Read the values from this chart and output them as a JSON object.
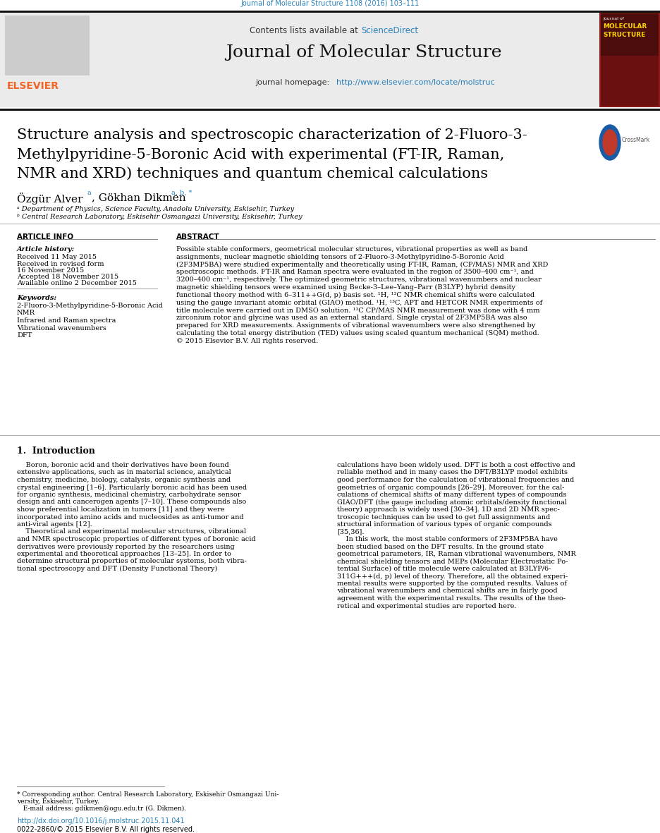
{
  "journal_ref": "Journal of Molecular Structure 1108 (2016) 103–111",
  "journal_name": "Journal of Molecular Structure",
  "homepage_url": "http://www.elsevier.com/locate/molstruc",
  "title_line1": "Structure analysis and spectroscopic characterization of 2-Fluoro-3-",
  "title_line2": "Methylpyridine-5-Boronic Acid with experimental (FT-IR, Raman,",
  "title_line3": "NMR and XRD) techniques and quantum chemical calculations",
  "author1": "Özgür Alver ",
  "author1_sup": "a",
  "author2": ", Gökhan Dikmen ",
  "author2_sup": "a, b, *",
  "affil_a": "ᵃ Department of Physics, Science Faculty, Anadolu University, Eskisehir, Turkey",
  "affil_b": "ᵇ Central Research Laboratory, Eskisehir Osmangazi University, Eskisehir, Turkey",
  "article_history_label": "Article history:",
  "received": "Received 11 May 2015",
  "revised_label": "Received in revised form",
  "revised_date": "16 November 2015",
  "accepted": "Accepted 18 November 2015",
  "available": "Available online 2 December 2015",
  "kw_label": "Keywords:",
  "kw1": "2-Fluoro-3-Methylpyridine-5-Boronic Acid",
  "kw2": "NMR",
  "kw3": "Infrared and Raman spectra",
  "kw4": "Vibrational wavenumbers",
  "kw5": "DFT",
  "abstract_lines": [
    "Possible stable conformers, geometrical molecular structures, vibrational properties as well as band",
    "assignments, nuclear magnetic shielding tensors of 2-Fluoro-3-Methylpyridine-5-Boronic Acid",
    "(2F3MP5BA) were studied experimentally and theoretically using FT-IR, Raman, (CP/MAS) NMR and XRD",
    "spectroscopic methods. FT-IR and Raman spectra were evaluated in the region of 3500–400 cm⁻¹, and",
    "3200–400 cm⁻¹, respectively. The optimized geometric structures, vibrational wavenumbers and nuclear",
    "magnetic shielding tensors were examined using Becke-3–Lee–Yang–Parr (B3LYP) hybrid density",
    "functional theory method with 6–311++G(d, p) basis set. ¹H, ¹³C NMR chemical shifts were calculated",
    "using the gauge invariant atomic orbital (GIAO) method. ¹H, ¹³C, APT and HETCOR NMR experiments of",
    "title molecule were carried out in DMSO solution. ¹³C CP/MAS NMR measurement was done with 4 mm",
    "zirconium rotor and glycine was used as an external standard. Single crystal of 2F3MP5BA was also",
    "prepared for XRD measurements. Assignments of vibrational wavenumbers were also strengthened by",
    "calculating the total energy distribution (TED) values using scaled quantum mechanical (SQM) method.",
    "© 2015 Elsevier B.V. All rights reserved."
  ],
  "intro_col1_lines": [
    "    Boron, boronic acid and their derivatives have been found",
    "extensive applications, such as in material science, analytical",
    "chemistry, medicine, biology, catalysis, organic synthesis and",
    "crystal engineering [1–6]. Particularly boronic acid has been used",
    "for organic synthesis, medicinal chemistry, carbohydrate sensor",
    "design and anti cancerogen agents [7–10]. These compounds also",
    "show preferential localization in tumors [11] and they were",
    "incorporated into amino acids and nucleosides as anti-tumor and",
    "anti-viral agents [12].",
    "    Theoretical and experimental molecular structures, vibrational",
    "and NMR spectroscopic properties of different types of boronic acid",
    "derivatives were previously reported by the researchers using",
    "experimental and theoretical approaches [13–25]. In order to",
    "determine structural properties of molecular systems, both vibra-",
    "tional spectroscopy and DFT (Density Functional Theory)"
  ],
  "intro_col2_lines": [
    "calculations have been widely used. DFT is both a cost effective and",
    "reliable method and in many cases the DFT/B3LYP model exhibits",
    "good performance for the calculation of vibrational frequencies and",
    "geometries of organic compounds [26–29]. Moreover, for the cal-",
    "culations of chemical shifts of many different types of compounds",
    "GIAO/DFT (the gauge including atomic orbitals/density functional",
    "theory) approach is widely used [30–34]. 1D and 2D NMR spec-",
    "troscopic techniques can be used to get full assignments and",
    "structural information of various types of organic compounds",
    "[35,36].",
    "    In this work, the most stable conformers of 2F3MP5BA have",
    "been studied based on the DFT results. In the ground state",
    "geometrical parameters, IR, Raman vibrational wavenumbers, NMR",
    "chemical shielding tensors and MEPs (Molecular Electrostatic Po-",
    "tential Surface) of title molecule were calculated at B3LYP/6-",
    "311G+++(d, p) level of theory. Therefore, all the obtained experi-",
    "mental results were supported by the computed results. Values of",
    "vibrational wavenumbers and chemical shifts are in fairly good",
    "agreement with the experimental results. The results of the theo-",
    "retical and experimental studies are reported here."
  ],
  "footnote1": "* Corresponding author. Central Research Laboratory, Eskisehir Osmangazi Uni-",
  "footnote2": "versity, Eskisehir, Turkey.",
  "footnote3": "   E-mail address: gdikmen@ogu.edu.tr (G. Dikmen).",
  "doi": "http://dx.doi.org/10.1016/j.molstruc.2015.11.041",
  "issn": "0022-2860/© 2015 Elsevier B.V. All rights reserved.",
  "link_color": "#2980B9",
  "elsevier_orange": "#F26522",
  "bg_color": "#ffffff",
  "gray_bg": "#EBEBEB",
  "dark_red_cover": "#8B1A1A"
}
